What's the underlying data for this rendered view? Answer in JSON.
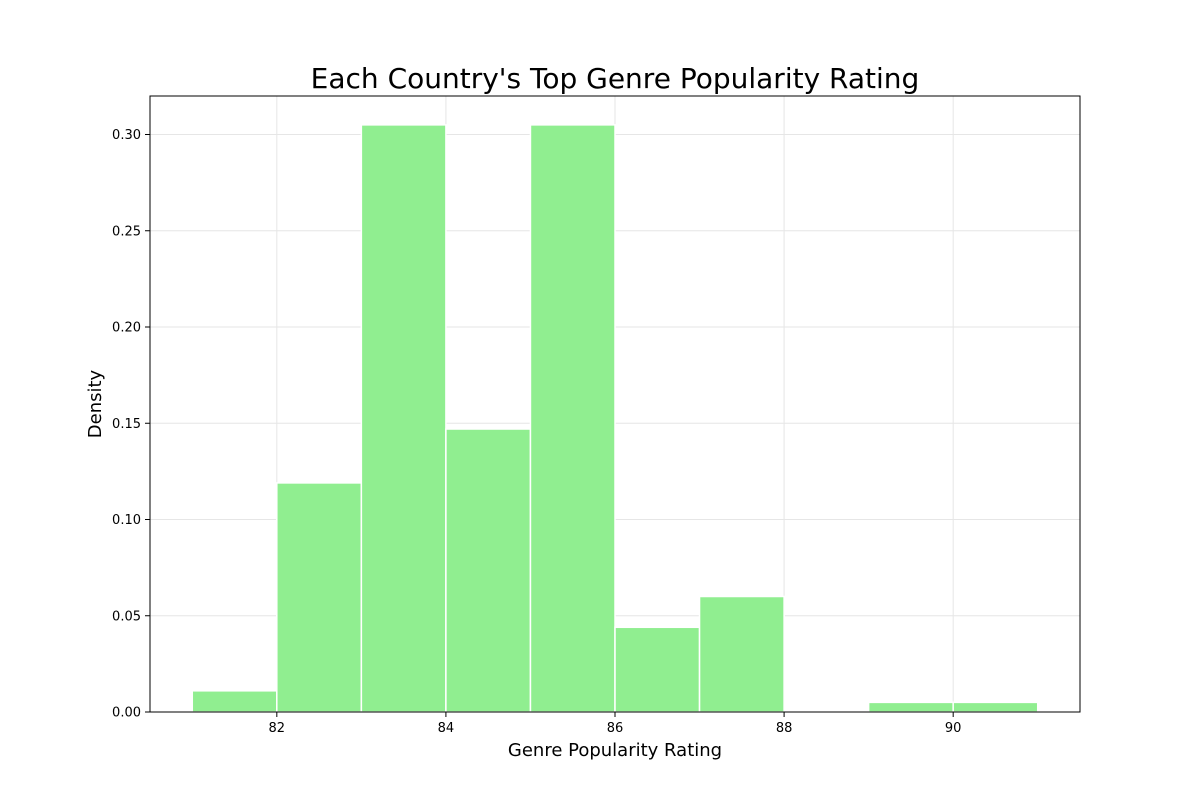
{
  "chart_data": {
    "type": "bar",
    "title": "Each Country's Top Genre Popularity Rating",
    "xlabel": "Genre Popularity Rating",
    "ylabel": "Density",
    "bin_edges": [
      81,
      82,
      83,
      84,
      85,
      86,
      87,
      88,
      89,
      90,
      91
    ],
    "values": [
      0.011,
      0.119,
      0.305,
      0.147,
      0.305,
      0.044,
      0.06,
      0.0,
      0.005,
      0.005
    ],
    "xlim": [
      80.5,
      91.5
    ],
    "ylim": [
      0,
      0.32
    ],
    "xticks": [
      82,
      84,
      86,
      88,
      90
    ],
    "yticks": [
      "0.00",
      "0.05",
      "0.10",
      "0.15",
      "0.20",
      "0.25",
      "0.30"
    ],
    "grid": true,
    "bar_color": "#90ee90",
    "edge_color": "#ffffff"
  }
}
